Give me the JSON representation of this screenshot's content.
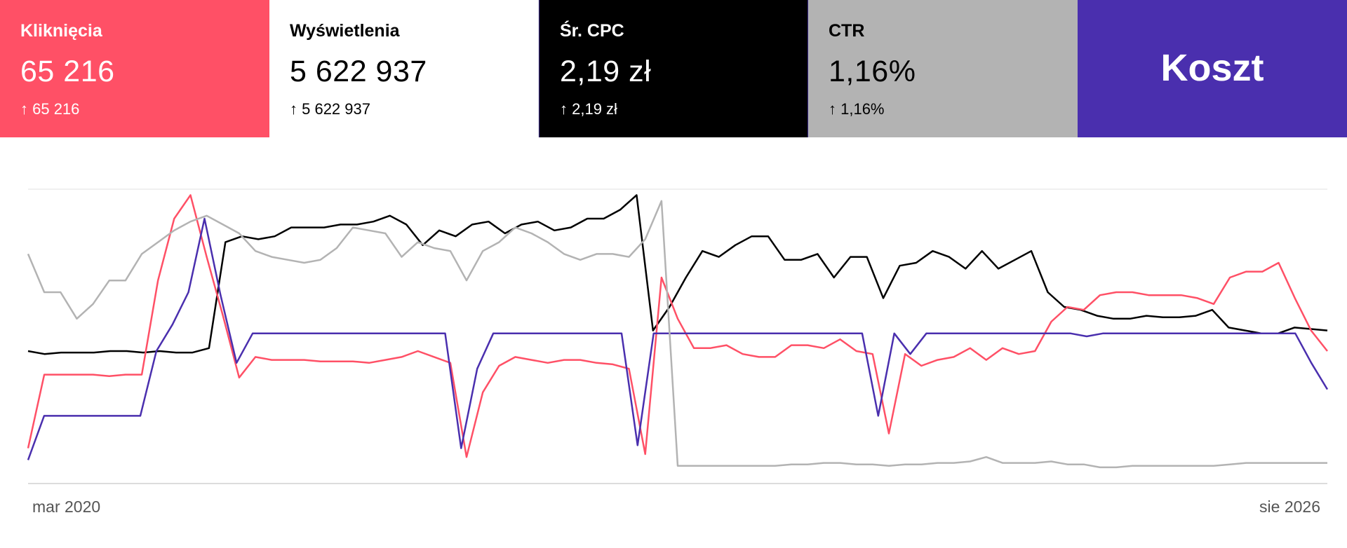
{
  "cards": [
    {
      "label": "Kliknięcia",
      "value": "65 216",
      "delta": "↑ 65 216",
      "bg": "#ff5066",
      "fg": "#ffffff"
    },
    {
      "label": "Wyświetlenia",
      "value": "5 622 937",
      "delta": "↑ 5 622 937",
      "bg": "#ffffff",
      "fg": "#000000"
    },
    {
      "label": "Śr. CPC",
      "value": "2,19 zł",
      "delta": "↑ 2,19 zł",
      "bg": "#000000",
      "fg": "#ffffff"
    },
    {
      "label": "CTR",
      "value": "1,16%",
      "delta": "↑ 1,16%",
      "bg": "#b3b3b3",
      "fg": "#000000"
    },
    {
      "label": "Koszt",
      "bg": "#4a2fae",
      "fg": "#ffffff"
    }
  ],
  "chart_data": {
    "type": "line",
    "x_start_label": "mar 2020",
    "x_end_label": "sie 2026",
    "grid": true,
    "ylim": [
      0,
      100
    ],
    "series": [
      {
        "color": "#000000",
        "values": [
          45,
          44,
          44.5,
          44.5,
          44.5,
          45,
          45,
          44.5,
          45,
          44.5,
          44.5,
          46,
          82,
          84,
          83,
          84,
          87,
          87,
          87,
          88,
          88,
          89,
          91,
          88,
          81,
          86,
          84,
          88,
          89,
          85,
          88,
          89,
          86,
          87,
          90,
          90,
          93,
          98,
          52,
          60,
          70,
          79,
          77,
          81,
          84,
          84,
          76,
          76,
          78,
          70,
          77,
          77,
          63,
          74,
          75,
          79,
          77,
          73,
          79,
          73,
          76,
          79,
          65,
          60,
          59,
          57,
          56,
          56,
          57,
          56.5,
          56.5,
          57,
          59,
          53,
          52,
          51,
          51,
          53,
          52.5,
          52
        ]
      },
      {
        "color": "#ff5066",
        "values": [
          12,
          37,
          37,
          37,
          37,
          36.5,
          37,
          37,
          69,
          90,
          98,
          77,
          57,
          36,
          43,
          42,
          42,
          42,
          41.5,
          41.5,
          41.5,
          41,
          42,
          43,
          45,
          43,
          41,
          9,
          31,
          40,
          43,
          42,
          41,
          42,
          42,
          41,
          40.5,
          39,
          10,
          70,
          56,
          46,
          46,
          47,
          44,
          43,
          43,
          47,
          47,
          46,
          49,
          45,
          44,
          17,
          44,
          40,
          42,
          43,
          46,
          42,
          46,
          44,
          45,
          55,
          60,
          59,
          64,
          65,
          65,
          64,
          64,
          64,
          63,
          61,
          70,
          72,
          72,
          75,
          63,
          52,
          45
        ]
      },
      {
        "color": "#4a2fae",
        "values": [
          8,
          23,
          23,
          23,
          23,
          23,
          23,
          23,
          45,
          54,
          65,
          90,
          64,
          41,
          51,
          51,
          51,
          51,
          51,
          51,
          51,
          51,
          51,
          51,
          51,
          51,
          51,
          12,
          39,
          51,
          51,
          51,
          51,
          51,
          51,
          51,
          51,
          51,
          13,
          51,
          51,
          51,
          51,
          51,
          51,
          51,
          51,
          51,
          51,
          51,
          51,
          51,
          51,
          23,
          51,
          44,
          51,
          51,
          51,
          51,
          51,
          51,
          51,
          51,
          51,
          51,
          50,
          51,
          51,
          51,
          51,
          51,
          51,
          51,
          51,
          51,
          51,
          51,
          51,
          51,
          41,
          32
        ]
      },
      {
        "color": "#b3b3b3",
        "values": [
          78,
          65,
          65,
          56,
          61,
          69,
          69,
          78,
          82,
          86,
          89,
          91,
          88,
          85,
          79,
          77,
          76,
          75,
          76,
          80,
          87,
          86,
          85,
          77,
          82,
          80,
          79,
          69,
          79,
          82,
          87,
          85,
          82,
          78,
          76,
          78,
          78,
          77,
          83,
          96,
          6,
          6,
          6,
          6,
          6,
          6,
          6,
          6.5,
          6.5,
          7,
          7,
          6.5,
          6.5,
          6,
          6.5,
          6.5,
          7,
          7,
          7.5,
          9,
          7,
          7,
          7,
          7.5,
          6.5,
          6.5,
          5.5,
          5.5,
          6,
          6,
          6,
          6,
          6,
          6,
          6.5,
          7,
          7,
          7,
          7,
          7,
          7
        ]
      }
    ]
  }
}
